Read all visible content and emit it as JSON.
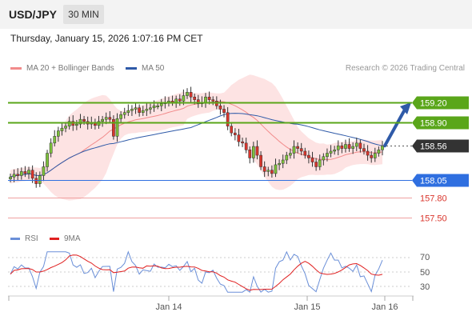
{
  "header": {
    "symbol": "USD/JPY",
    "interval": "30 MIN"
  },
  "timestamp": "Thursday, January 15, 2026 1:07:16 PM CET",
  "legend": [
    {
      "label": "MA 20 + Bollinger Bands",
      "color": "#f28b8b"
    },
    {
      "label": "MA 50",
      "color": "#2f5aa8"
    }
  ],
  "credit": "Research © 2026 Trading Central",
  "levels": [
    {
      "value": "159.20",
      "price": 159.2,
      "type": "resistance",
      "color": "#5aa61a"
    },
    {
      "value": "158.90",
      "price": 158.9,
      "type": "resistance",
      "color": "#5aa61a"
    },
    {
      "value": "158.56",
      "price": 158.56,
      "type": "current",
      "color": "#333333"
    },
    {
      "value": "158.05",
      "price": 158.05,
      "type": "pivot",
      "color": "#2f6fe0"
    },
    {
      "value": "157.80",
      "price": 157.8,
      "type": "support",
      "color": "#d9342b"
    },
    {
      "value": "157.50",
      "price": 157.5,
      "type": "support",
      "color": "#d9342b"
    }
  ],
  "rsi_legend": [
    {
      "label": "RSI",
      "color": "#6a8fd8"
    },
    {
      "label": "9MA",
      "color": "#e02020"
    }
  ],
  "rsi_ticks": [
    "70",
    "50",
    "30"
  ],
  "x_ticks": [
    "Jan 14",
    "Jan 15",
    "Jan 16"
  ],
  "chart_data": {
    "type": "candlestick",
    "price_range": [
      157.35,
      159.45
    ],
    "closes": [
      158.1,
      158.14,
      158.12,
      158.18,
      158.15,
      158.2,
      158.08,
      158.0,
      158.12,
      158.25,
      158.45,
      158.6,
      158.7,
      158.78,
      158.82,
      158.85,
      158.92,
      158.86,
      158.88,
      158.95,
      158.92,
      158.88,
      158.9,
      158.86,
      158.92,
      158.95,
      158.98,
      158.95,
      158.7,
      158.96,
      159.02,
      159.05,
      159.08,
      159.1,
      159.12,
      159.05,
      159.08,
      159.1,
      159.12,
      159.15,
      159.15,
      159.18,
      159.2,
      159.22,
      159.2,
      159.25,
      159.22,
      159.3,
      159.35,
      159.28,
      159.24,
      159.18,
      159.2,
      159.28,
      159.24,
      159.22,
      159.15,
      159.1,
      159.05,
      158.85,
      158.75,
      158.72,
      158.62,
      158.6,
      158.5,
      158.38,
      158.55,
      158.42,
      158.25,
      158.18,
      158.2,
      158.15,
      158.28,
      158.3,
      158.35,
      158.42,
      158.45,
      158.55,
      158.52,
      158.48,
      158.42,
      158.38,
      158.32,
      158.25,
      158.35,
      158.4,
      158.45,
      158.48,
      158.5,
      158.56,
      158.52,
      158.58,
      158.52,
      158.55,
      158.6,
      158.52,
      158.48,
      158.42,
      158.38,
      158.45,
      158.5,
      158.56
    ],
    "bollinger_ma20": {
      "start": 158.1,
      "end": 158.5
    },
    "ma50": {
      "start": 158.0,
      "end": 158.45
    },
    "projection": {
      "from": 158.56,
      "to": 159.2
    }
  }
}
